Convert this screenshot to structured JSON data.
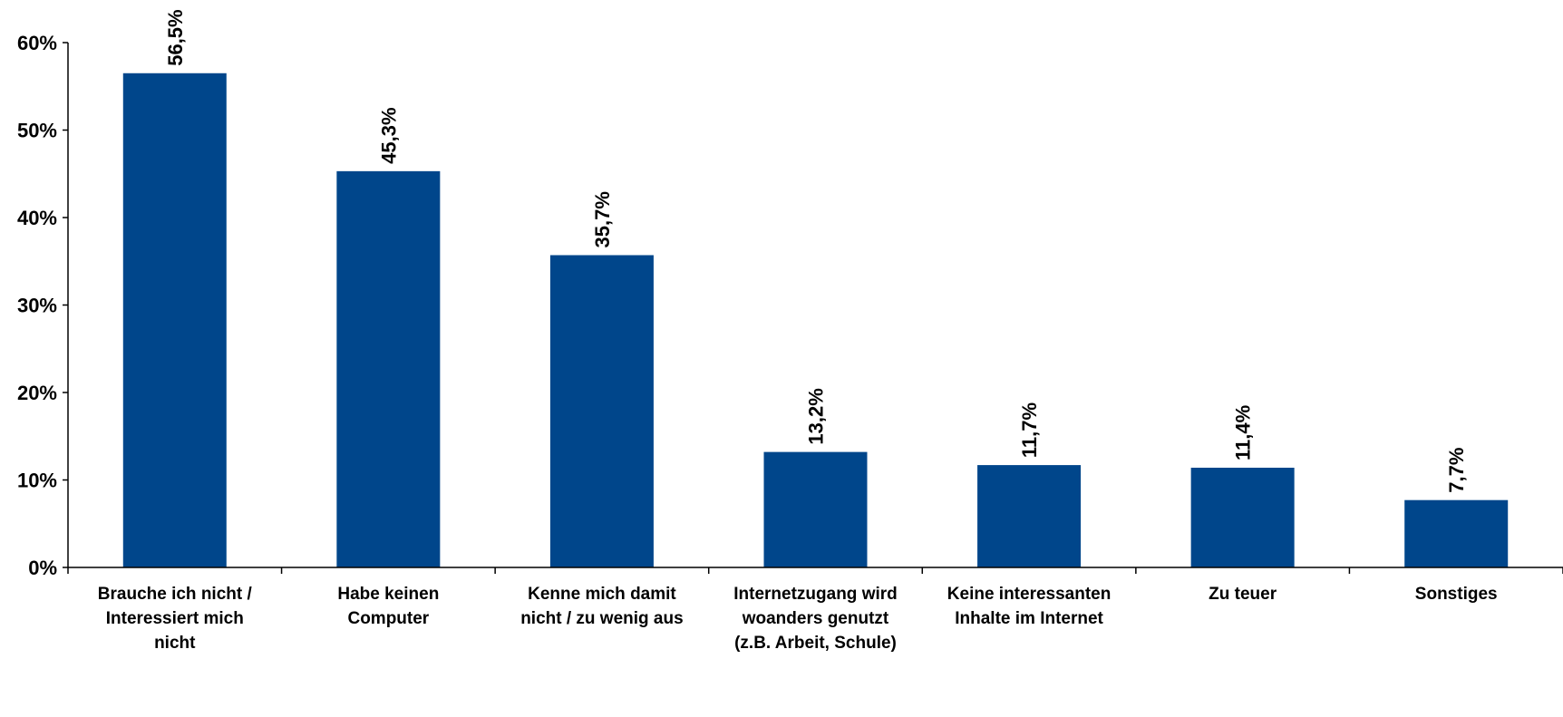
{
  "chart_data": {
    "type": "bar",
    "title": "",
    "xlabel": "",
    "ylabel": "",
    "ylim": [
      0,
      60
    ],
    "yticks": [
      0,
      10,
      20,
      30,
      40,
      50,
      60
    ],
    "ytick_labels": [
      "0%",
      "10%",
      "20%",
      "30%",
      "40%",
      "50%",
      "60%"
    ],
    "grid": false,
    "legend": "none",
    "bar_color": "#00468B",
    "categories": [
      [
        "Brauche ich nicht /",
        "Interessiert mich",
        "nicht"
      ],
      [
        "Habe keinen",
        "Computer"
      ],
      [
        "Kenne mich damit",
        "nicht / zu wenig aus"
      ],
      [
        "Internetzugang wird",
        "woanders genutzt",
        "(z.B. Arbeit, Schule)"
      ],
      [
        "Keine interessanten",
        "Inhalte im Internet"
      ],
      [
        "Zu teuer"
      ],
      [
        "Sonstiges"
      ]
    ],
    "values": [
      56.5,
      45.3,
      35.7,
      13.2,
      11.7,
      11.4,
      7.7
    ],
    "data_labels": [
      "56,5%",
      "45,3%",
      "35,7%",
      "13,2%",
      "11,7%",
      "11,4%",
      "7,7%"
    ]
  }
}
